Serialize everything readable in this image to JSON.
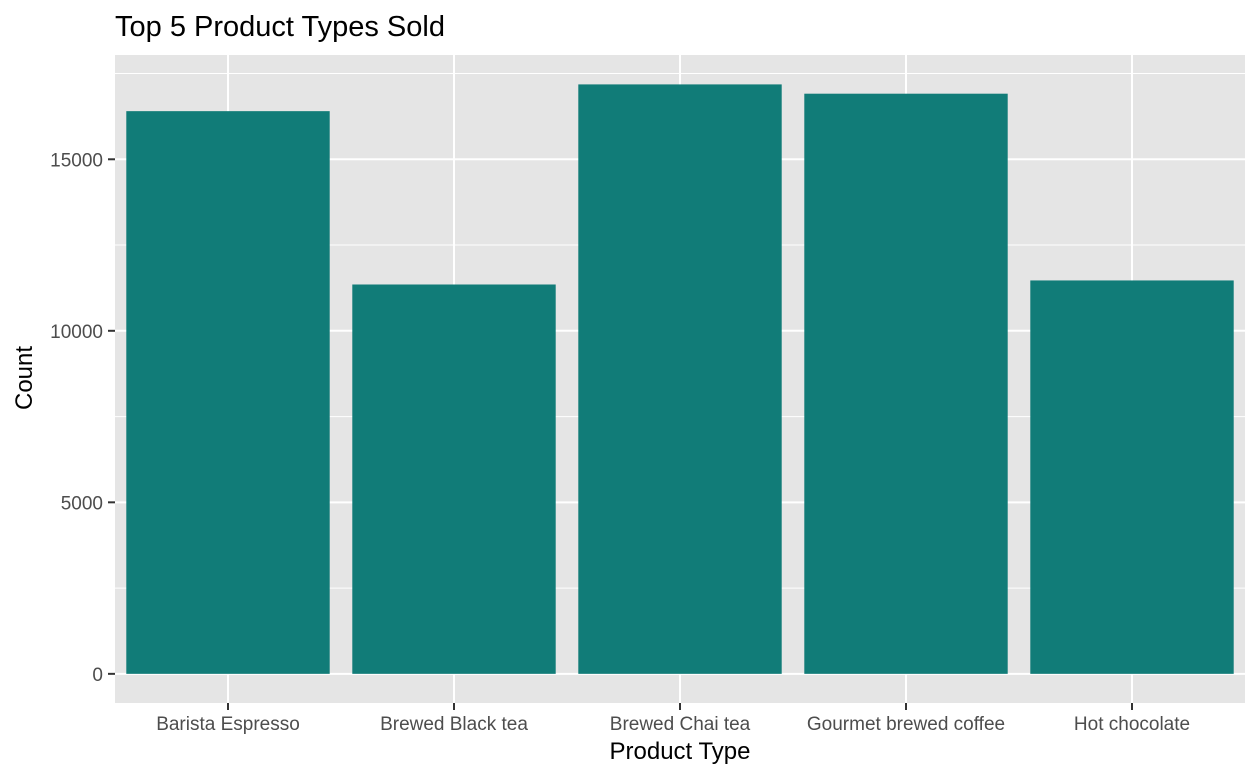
{
  "chart_data": {
    "type": "bar",
    "title": "Top 5 Product Types Sold",
    "xlabel": "Product Type",
    "ylabel": "Count",
    "categories": [
      "Barista Espresso",
      "Brewed Black tea",
      "Brewed Chai tea",
      "Gourmet brewed coffee",
      "Hot chocolate"
    ],
    "values": [
      16403,
      11350,
      17183,
      16912,
      11468
    ],
    "ylim": [
      -850,
      18040
    ],
    "yticks": [
      0,
      5000,
      10000,
      15000
    ],
    "yticks_minor": [
      2500,
      7500,
      12500,
      17500
    ],
    "grid": true,
    "legend": "none",
    "colors": {
      "bar": "#117C78",
      "panel_background": "#E5E5E5",
      "grid_major": "#FFFFFF",
      "grid_minor": "#F2F2F2",
      "tick": "#333333",
      "tick_label": "#4D4D4D"
    }
  }
}
